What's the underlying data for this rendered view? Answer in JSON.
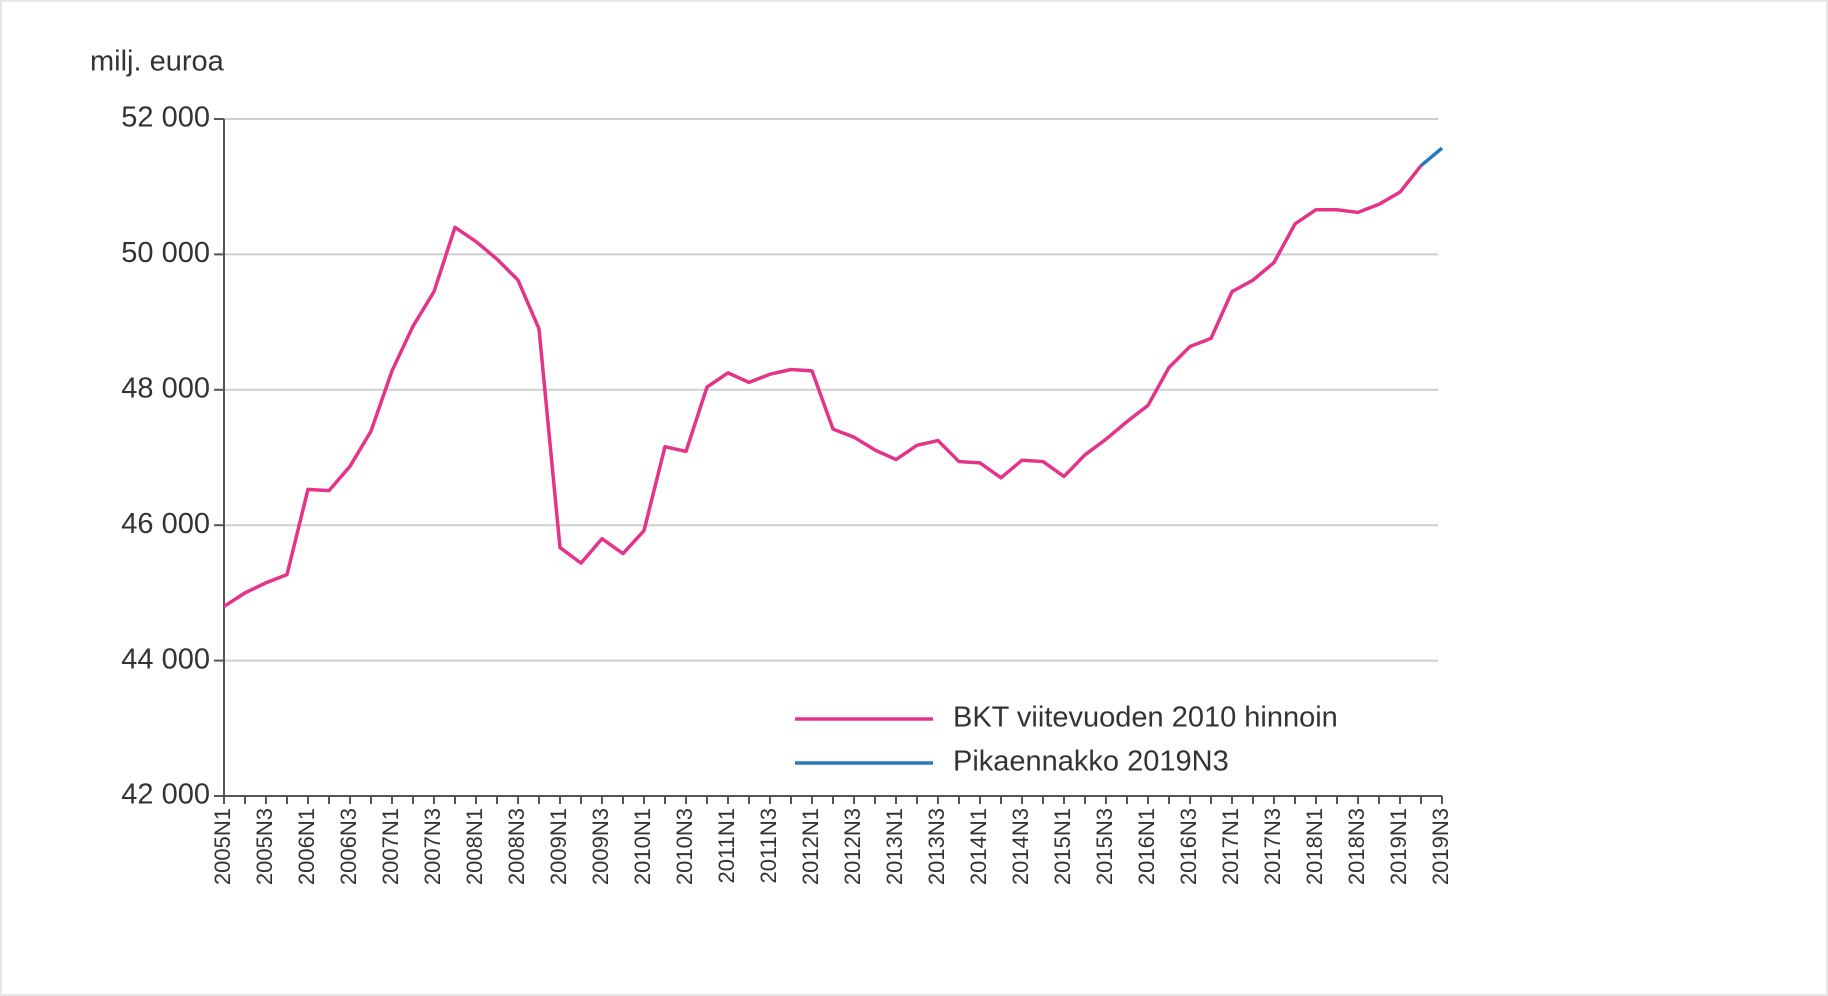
{
  "chart_data": {
    "type": "line",
    "y_label": "milj. euroa",
    "categories": [
      "2005N1",
      null,
      "2005N3",
      null,
      "2006N1",
      null,
      "2006N3",
      null,
      "2007N1",
      null,
      "2007N3",
      null,
      "2008N1",
      null,
      "2008N3",
      null,
      "2009N1",
      null,
      "2009N3",
      null,
      "2010N1",
      null,
      "2010N3",
      null,
      "2011N1",
      null,
      "2011N3",
      null,
      "2012N1",
      null,
      "2012N3",
      null,
      "2013N1",
      null,
      "2013N3",
      null,
      "2014N1",
      null,
      "2014N3",
      null,
      "2015N1",
      null,
      "2015N3",
      null,
      "2016N1",
      null,
      "2016N3",
      null,
      "2017N1",
      null,
      "2017N3",
      null,
      "2018N1",
      null,
      "2018N3",
      null,
      "2019N1",
      null,
      "2019N3"
    ],
    "series": [
      {
        "name": "BKT viitevuoden 2010 hinnoin",
        "color": "#e5338a",
        "values": [
          44800,
          45000,
          45150,
          45270,
          46530,
          46510,
          46870,
          47390,
          48280,
          48940,
          49450,
          50400,
          50190,
          49930,
          49620,
          48900,
          45670,
          45440,
          45800,
          45580,
          45920,
          47160,
          47090,
          48040,
          48250,
          48110,
          48230,
          48300,
          48280,
          47420,
          47300,
          47110,
          46970,
          47180,
          47250,
          46940,
          46920,
          46700,
          46960,
          46940,
          46720,
          47040,
          47270,
          47530,
          47770,
          48330,
          48640,
          48760,
          49450,
          49620,
          49880,
          50450,
          50660,
          50660,
          50620,
          50740,
          50920,
          51310,
          null
        ]
      },
      {
        "name": "Pikaennakko 2019N3",
        "color": "#2a7ab8",
        "values": [
          null,
          null,
          null,
          null,
          null,
          null,
          null,
          null,
          null,
          null,
          null,
          null,
          null,
          null,
          null,
          null,
          null,
          null,
          null,
          null,
          null,
          null,
          null,
          null,
          null,
          null,
          null,
          null,
          null,
          null,
          null,
          null,
          null,
          null,
          null,
          null,
          null,
          null,
          null,
          null,
          null,
          null,
          null,
          null,
          null,
          null,
          null,
          null,
          null,
          null,
          null,
          null,
          null,
          null,
          null,
          null,
          null,
          51310,
          51570
        ]
      }
    ],
    "ylim": [
      42000,
      52000
    ],
    "yticks": [
      {
        "value": 42000,
        "label": "42 000"
      },
      {
        "value": 44000,
        "label": "44 000"
      },
      {
        "value": 46000,
        "label": "46 000"
      },
      {
        "value": 48000,
        "label": "48 000"
      },
      {
        "value": 50000,
        "label": "50 000"
      },
      {
        "value": 52000,
        "label": "52 000"
      }
    ],
    "grid": true,
    "legend": "lower right"
  }
}
